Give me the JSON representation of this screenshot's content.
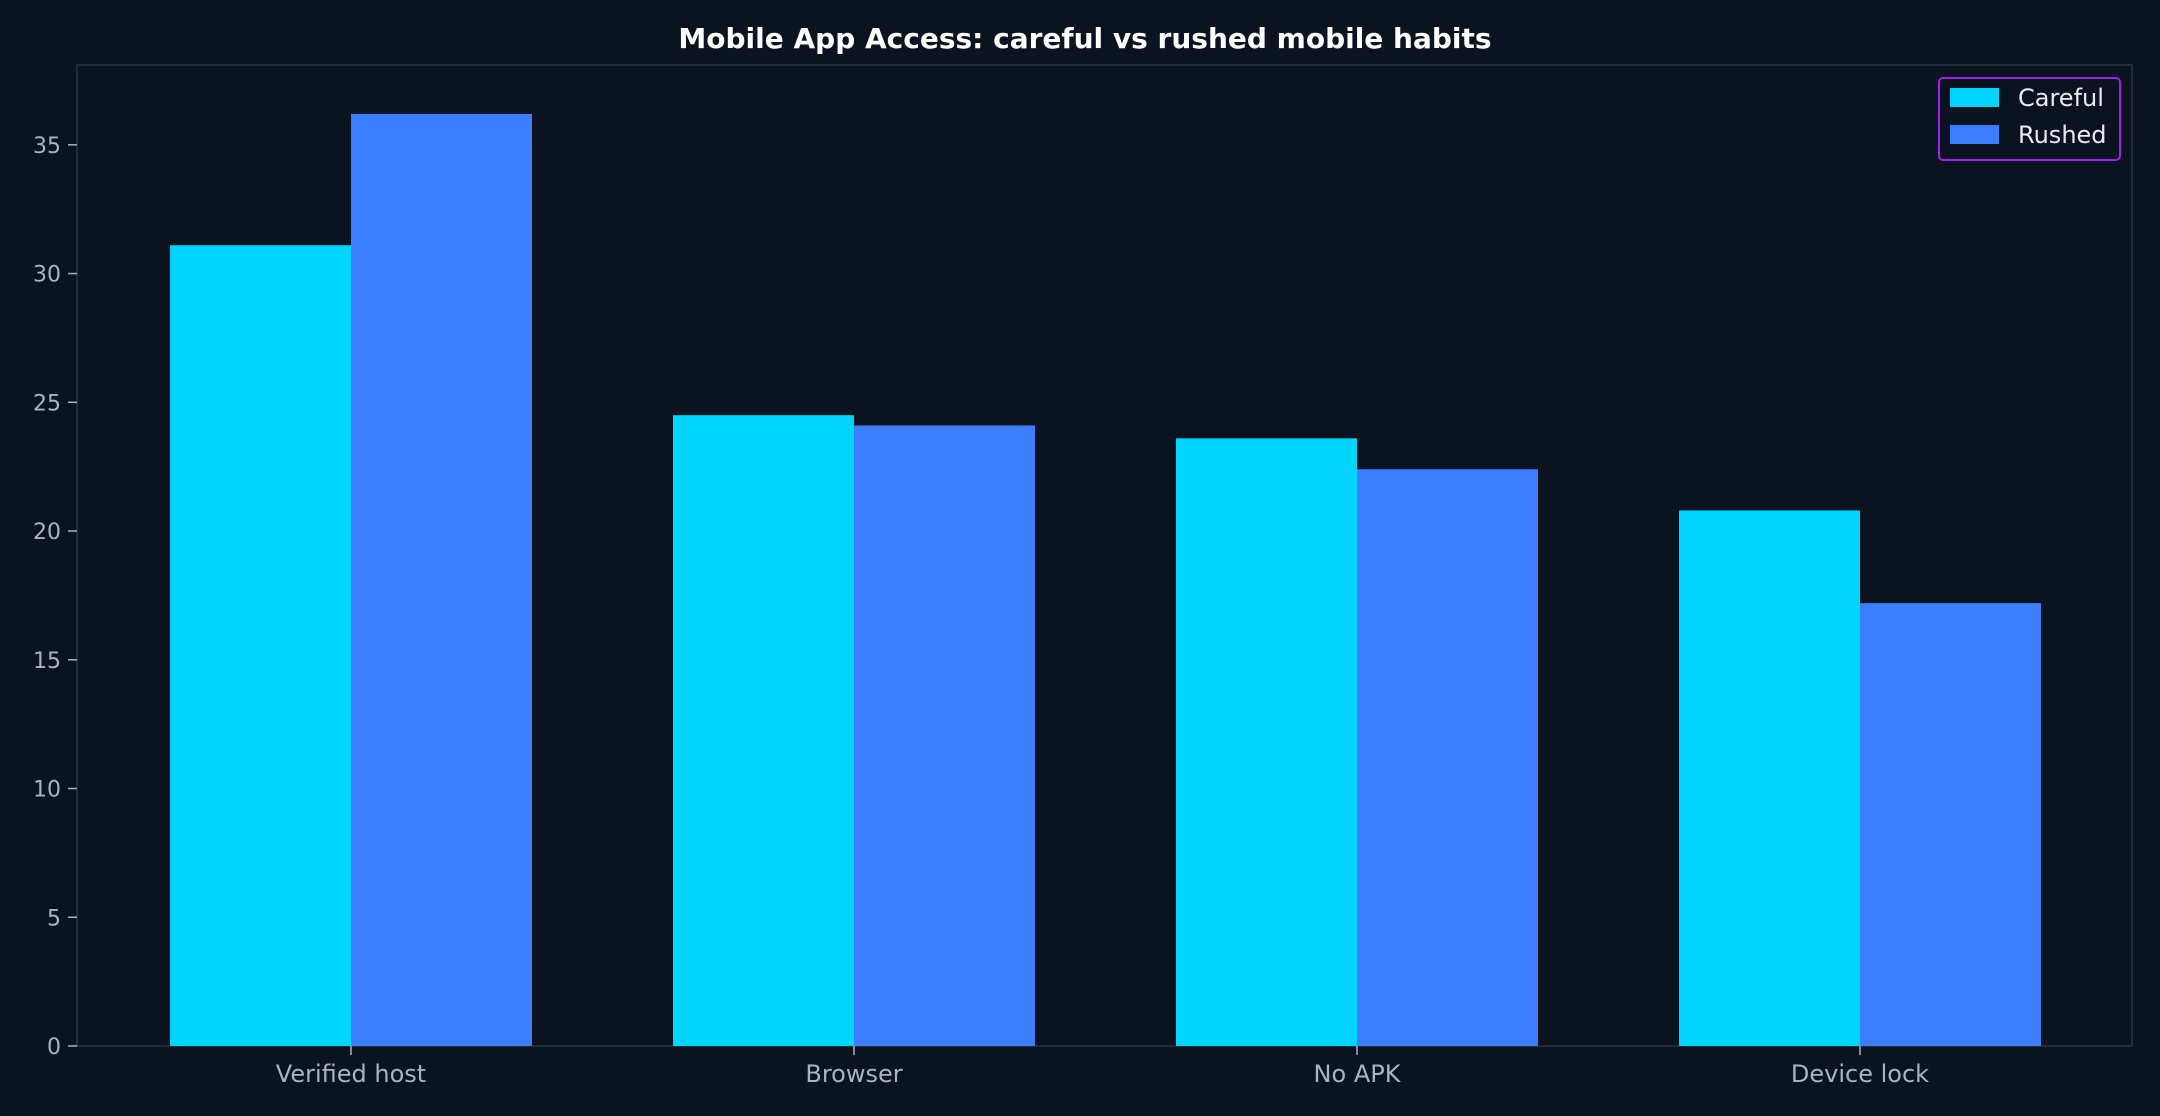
{
  "chart_data": {
    "type": "bar",
    "title": "Mobile App Access: careful vs rushed mobile habits",
    "xlabel": "",
    "ylabel": "",
    "categories": [
      "Verified host",
      "Browser",
      "No APK",
      "Device lock"
    ],
    "series": [
      {
        "name": "Careful",
        "values": [
          31.1,
          24.5,
          23.6,
          20.8
        ],
        "color": "#00d4ff"
      },
      {
        "name": "Rushed",
        "values": [
          36.2,
          24.1,
          22.4,
          17.2
        ],
        "color": "#3d7eff"
      }
    ],
    "ylim": [
      0,
      38.1
    ],
    "yticks": [
      0,
      5,
      10,
      15,
      20,
      25,
      30,
      35
    ],
    "grid": false,
    "legend": "top-right"
  },
  "colors": {
    "background": "#0b1220",
    "axis": "#2c3446",
    "tick_text": "#aab3c2",
    "title_text": "#ffffff",
    "legend_border": "#a020f0"
  }
}
